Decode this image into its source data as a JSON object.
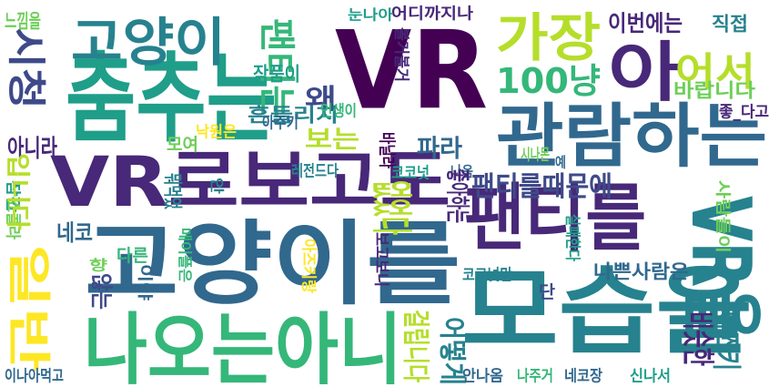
{
  "title": "word cloud",
  "palette": {
    "dark_purple": "#440154",
    "indigo": "#482878",
    "blue_purple": "#3e4a89",
    "slate_blue": "#31688e",
    "teal_blue": "#26828e",
    "teal": "#1f9e89",
    "green_teal": "#35b779",
    "green": "#6ece58",
    "lime": "#b5de2b",
    "yellow": "#fde725"
  },
  "words": [
    {
      "text": "VR",
      "color": "#440154"
    },
    {
      "text": "고양이를",
      "color": "#31688e"
    },
    {
      "text": "춤추는",
      "color": "#1f9e89"
    },
    {
      "text": "모습을",
      "color": "#26828e"
    },
    {
      "text": "VR로보고도",
      "color": "#482878"
    },
    {
      "text": "관람하는",
      "color": "#31688e"
    },
    {
      "text": "나오는아니",
      "color": "#35b779"
    },
    {
      "text": "팬티를",
      "color": "#482878"
    },
    {
      "text": "고양이",
      "color": "#26828e"
    },
    {
      "text": "아",
      "color": "#482878"
    },
    {
      "text": "가장",
      "color": "#b5de2b"
    },
    {
      "text": "VR을",
      "color": "#26828e"
    },
    {
      "text": "시청",
      "color": "#3e4a89"
    },
    {
      "text": "일반",
      "color": "#fde725"
    },
    {
      "text": "팬티는",
      "color": "#35b779"
    },
    {
      "text": "이번에는",
      "color": "#482878"
    },
    {
      "text": "100냥",
      "color": "#35b779"
    },
    {
      "text": "어서",
      "color": "#b5de2b"
    },
    {
      "text": "왜",
      "color": "#3e4a89"
    },
    {
      "text": "흔들리지",
      "color": "#26828e"
    },
    {
      "text": "직접",
      "color": "#26828e"
    },
    {
      "text": "바랍니다",
      "color": "#6ece58"
    },
    {
      "text": "느낌을",
      "color": "#6ece58"
    },
    {
      "text": "작품이",
      "color": "#1f9e89"
    },
    {
      "text": "없었다",
      "color": "#b5de2b"
    },
    {
      "text": "파라",
      "color": "#31688e"
    },
    {
      "text": "보는",
      "color": "#b5de2b"
    },
    {
      "text": "아니라",
      "color": "#482878"
    },
    {
      "text": "팬티를때문에",
      "color": "#3e4a89"
    },
    {
      "text": "네코",
      "color": "#31688e"
    },
    {
      "text": "나쁜사람은",
      "color": "#31688e"
    },
    {
      "text": "비슷한",
      "color": "#482878"
    },
    {
      "text": "아즈키",
      "color": "#26828e"
    },
    {
      "text": "어떻게",
      "color": "#26828e"
    },
    {
      "text": "걸립니다",
      "color": "#b5de2b"
    },
    {
      "text": "어디까지나",
      "color": "#482878"
    },
    {
      "text": "눈나아",
      "color": "#1f9e89"
    },
    {
      "text": "볼거볼거",
      "color": "#482878"
    },
    {
      "text": "인생이",
      "color": "#35b779"
    },
    {
      "text": "아주키",
      "color": "#31688e"
    },
    {
      "text": "모여",
      "color": "#6ece58"
    },
    {
      "text": "낙원은",
      "color": "#fde725"
    },
    {
      "text": "바닐라",
      "color": "#440154"
    },
    {
      "text": "레전드다",
      "color": "#26828e"
    },
    {
      "text": "코코넛",
      "color": "#1f9e89"
    },
    {
      "text": "나옴",
      "color": "#31688e"
    },
    {
      "text": "시나몬",
      "color": "#6ece58"
    },
    {
      "text": "예",
      "color": "#31688e"
    },
    {
      "text": "좋아하는",
      "color": "#482878"
    },
    {
      "text": "좋_다고",
      "color": "#482878"
    },
    {
      "text": "사람들이",
      "color": "#6ece58"
    },
    {
      "text": "실패한다",
      "color": "#1f9e89"
    },
    {
      "text": "잠깐",
      "color": "#1f9e89"
    },
    {
      "text": "쇼콜라",
      "color": "#6ece58"
    },
    {
      "text": "입니다",
      "color": "#b5de2b"
    },
    {
      "text": "다른",
      "color": "#35b779"
    },
    {
      "text": "메이플은",
      "color": "#35b779"
    },
    {
      "text": "향",
      "color": "#6ece58"
    },
    {
      "text": "보고보니",
      "color": "#482878"
    },
    {
      "text": "아즈키랑",
      "color": "#fde725"
    },
    {
      "text": "코코넛만",
      "color": "#26828e"
    },
    {
      "text": "않는",
      "color": "#3e4a89"
    },
    {
      "text": "뭐먹었",
      "color": "#26828e"
    },
    {
      "text": "이야",
      "color": "#31688e"
    },
    {
      "text": "단",
      "color": "#3e4a89"
    },
    {
      "text": "이나아먹고",
      "color": "#31688e"
    },
    {
      "text": "안나옴",
      "color": "#31688e"
    },
    {
      "text": "나주거",
      "color": "#35b779"
    },
    {
      "text": "네코장",
      "color": "#31688e"
    },
    {
      "text": "신나서",
      "color": "#1f9e89"
    },
    {
      "text": "안",
      "color": "#26828e"
    }
  ]
}
